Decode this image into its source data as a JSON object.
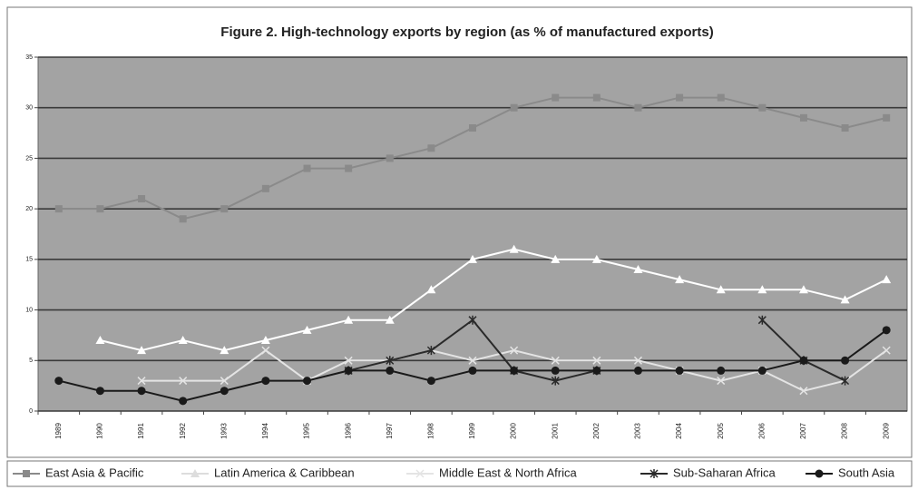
{
  "chart_data": {
    "type": "line",
    "title": "Figure 2. High-technology exports by region (as % of manufactured exports)",
    "categories": [
      "1989",
      "1990",
      "1991",
      "1992",
      "1993",
      "1994",
      "1995",
      "1996",
      "1997",
      "1998",
      "1999",
      "2000",
      "2001",
      "2002",
      "2003",
      "2004",
      "2005",
      "2006",
      "2007",
      "2008",
      "2009"
    ],
    "ylim": [
      0,
      35
    ],
    "yticks": [
      0,
      5,
      10,
      15,
      20,
      25,
      30,
      35
    ],
    "grid": true,
    "legend": "bottom",
    "series": [
      {
        "name": "East Asia & Pacific",
        "color": "#8a8a8a",
        "marker": "square",
        "values": [
          20,
          20,
          21,
          19,
          20,
          22,
          24,
          24,
          25,
          26,
          28,
          30,
          31,
          31,
          30,
          31,
          31,
          30,
          29,
          28,
          29
        ]
      },
      {
        "name": "Latin America & Caribbean",
        "color": "#ffffff",
        "marker": "triangle",
        "values": [
          null,
          7,
          6,
          7,
          6,
          7,
          8,
          9,
          9,
          12,
          15,
          16,
          15,
          15,
          14,
          13,
          12,
          12,
          12,
          11,
          13
        ]
      },
      {
        "name": "Middle East & North Africa",
        "color": "#e4e4e4",
        "marker": "x",
        "values": [
          null,
          null,
          3,
          3,
          3,
          6,
          3,
          5,
          5,
          6,
          5,
          6,
          5,
          5,
          5,
          4,
          3,
          4,
          2,
          3,
          6
        ]
      },
      {
        "name": "Sub-Saharan Africa",
        "color": "#2a2a2a",
        "marker": "star",
        "values": [
          null,
          null,
          null,
          null,
          null,
          null,
          null,
          4,
          5,
          6,
          9,
          4,
          3,
          4,
          null,
          null,
          null,
          9,
          5,
          3,
          null
        ]
      },
      {
        "name": "South Asia",
        "color": "#1a1a1a",
        "marker": "circle",
        "values": [
          3,
          2,
          2,
          1,
          2,
          3,
          3,
          4,
          4,
          3,
          4,
          4,
          4,
          4,
          4,
          4,
          4,
          4,
          5,
          5,
          8
        ]
      }
    ]
  }
}
